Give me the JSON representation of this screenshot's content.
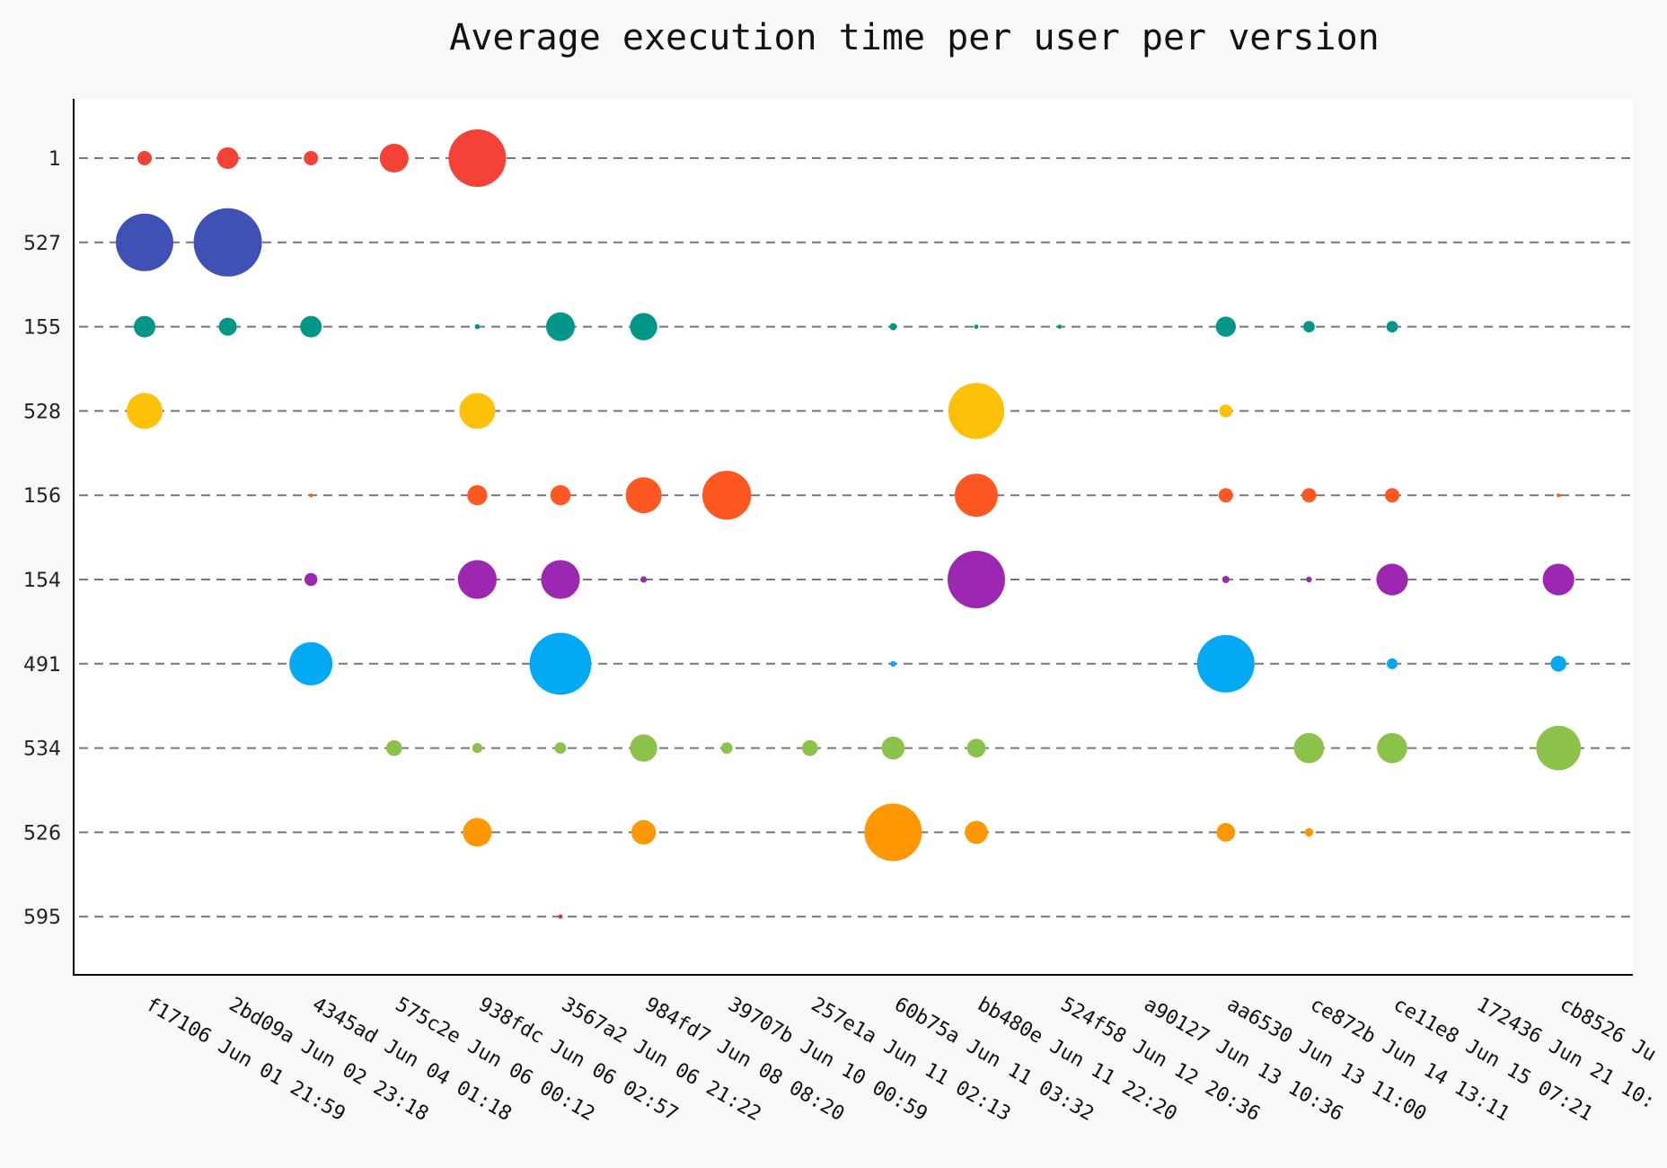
{
  "chart_data": {
    "type": "scatter",
    "title": "Average execution time per user per version",
    "xlabel": "",
    "ylabel": "",
    "categories": [
      "f17106 Jun 01 21:59",
      "2bd09a Jun 02 23:18",
      "4345ad Jun 04 01:18",
      "575c2e Jun 06 00:12",
      "938fdc Jun 06 02:57",
      "3567a2 Jun 06 21:22",
      "984fd7 Jun 08 08:20",
      "39707b Jun 10 00:59",
      "257e1a Jun 11 02:13",
      "60b75a Jun 11 03:32",
      "bb480e Jun 11 22:20",
      "524f58 Jun 12 20:36",
      "a90127 Jun 13 10:36",
      "aa6530 Jun 13 11:00",
      "ce872b Jun 14 13:11",
      "ce11e8 Jun 15 07:21",
      "172436 Jun 21 10:",
      "cb8526 Ju"
    ],
    "users": [
      "1",
      "527",
      "155",
      "528",
      "156",
      "154",
      "491",
      "534",
      "526",
      "595"
    ],
    "grid": true,
    "series": [
      {
        "color": "#f44336",
        "points": [
          [
            0,
            2
          ],
          [
            1,
            3
          ],
          [
            2,
            2
          ],
          [
            3,
            4
          ],
          [
            4,
            8
          ]
        ]
      },
      {
        "color": "#3f51b5",
        "points": [
          [
            0,
            8
          ],
          [
            1,
            9.5
          ]
        ]
      },
      {
        "color": "#009688",
        "points": [
          [
            0,
            3
          ],
          [
            1,
            2.5
          ],
          [
            2,
            3
          ],
          [
            4,
            0.7
          ],
          [
            5,
            4
          ],
          [
            6,
            3.8
          ],
          [
            9,
            1
          ],
          [
            10,
            0.6
          ],
          [
            11,
            0.6
          ],
          [
            13,
            2.8
          ],
          [
            14,
            1.6
          ],
          [
            15,
            1.6
          ]
        ]
      },
      {
        "color": "#ffc107",
        "points": [
          [
            0,
            5
          ],
          [
            4,
            5
          ],
          [
            10,
            7.8
          ],
          [
            13,
            1.8
          ]
        ]
      },
      {
        "color": "#ff5722",
        "points": [
          [
            2,
            0.3
          ],
          [
            4,
            2.8
          ],
          [
            5,
            2.8
          ],
          [
            6,
            5
          ],
          [
            7,
            6.8
          ],
          [
            10,
            6
          ],
          [
            13,
            2
          ],
          [
            14,
            2
          ],
          [
            15,
            2
          ],
          [
            17,
            0.3
          ]
        ]
      },
      {
        "color": "#9c27b0",
        "points": [
          [
            2,
            1.8
          ],
          [
            4,
            5.4
          ],
          [
            5,
            5.4
          ],
          [
            6,
            0.9
          ],
          [
            10,
            8
          ],
          [
            13,
            1
          ],
          [
            14,
            0.8
          ],
          [
            15,
            4.4
          ],
          [
            17,
            4.4
          ]
        ]
      },
      {
        "color": "#03a9f4",
        "points": [
          [
            2,
            6
          ],
          [
            5,
            8.6
          ],
          [
            9,
            0.8
          ],
          [
            13,
            8
          ],
          [
            15,
            1.5
          ],
          [
            17,
            2.2
          ]
        ]
      },
      {
        "color": "#8bc34a",
        "points": [
          [
            3,
            2.2
          ],
          [
            4,
            1.4
          ],
          [
            5,
            1.6
          ],
          [
            6,
            3.8
          ],
          [
            7,
            1.6
          ],
          [
            8,
            2.2
          ],
          [
            9,
            3.2
          ],
          [
            10,
            2.6
          ],
          [
            14,
            4.2
          ],
          [
            15,
            4.2
          ],
          [
            17,
            6.2
          ]
        ]
      },
      {
        "color": "#ff9800",
        "points": [
          [
            4,
            4
          ],
          [
            6,
            3.4
          ],
          [
            9,
            8
          ],
          [
            10,
            3.2
          ],
          [
            13,
            2.6
          ],
          [
            14,
            1.2
          ]
        ]
      },
      {
        "color": "#e91e63",
        "points": [
          [
            5,
            0.6
          ]
        ]
      }
    ]
  }
}
